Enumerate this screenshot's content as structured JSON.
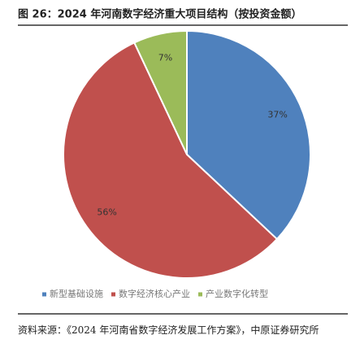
{
  "chart_data": {
    "type": "pie",
    "title": "图 26：2024 年河南数字经济重大项目结构（按投资金额）",
    "categories": [
      "新型基础设施",
      "数字经济核心产业",
      "产业数字化转型"
    ],
    "values": [
      37,
      56,
      7
    ],
    "value_labels": [
      "37%",
      "56%",
      "7%"
    ],
    "colors": [
      "#4f81bd",
      "#c0504d",
      "#9bbb59"
    ],
    "legend": "bottom",
    "source": "资料来源：《2024 年河南省数字经济发展工作方案》，中原证券研究所"
  }
}
